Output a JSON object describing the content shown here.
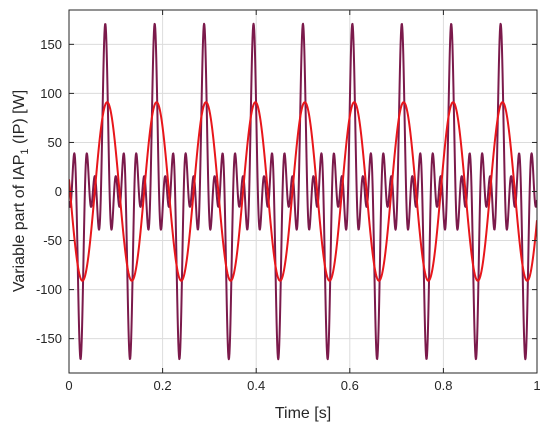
{
  "chart_data": {
    "type": "line",
    "xlabel": "Time [s]",
    "ylabel_parts": {
      "main": "Variable part of IAP",
      "sub": "1",
      "tail": " (IP)  [W]"
    },
    "xlim": [
      0,
      1
    ],
    "ylim": [
      -185,
      185
    ],
    "x_ticks": [
      0,
      0.2,
      0.4,
      0.6,
      0.8,
      1
    ],
    "x_tick_labels": [
      "0",
      "0.2",
      "0.4",
      "0.6",
      "0.8",
      "1"
    ],
    "y_ticks": [
      -150,
      -100,
      -50,
      0,
      50,
      100,
      150
    ],
    "y_tick_labels": [
      "-150",
      "-100",
      "-50",
      "0",
      "50",
      "100",
      "150"
    ],
    "grid": true,
    "series": [
      {
        "color": "#7b1a4b",
        "period": 0.1056,
        "phase_shift": 0.0775,
        "harmonics": [
          {
            "n": 1,
            "amp": 58,
            "phase": 0
          },
          {
            "n": 3,
            "amp": 65,
            "phase": 0
          },
          {
            "n": 5,
            "amp": 48,
            "phase": 0
          }
        ]
      },
      {
        "color": "#e8161b",
        "period": 0.1056,
        "phase_shift": 0.0815,
        "harmonics": [
          {
            "n": 1,
            "amp": 91,
            "phase": 0
          }
        ]
      }
    ]
  }
}
